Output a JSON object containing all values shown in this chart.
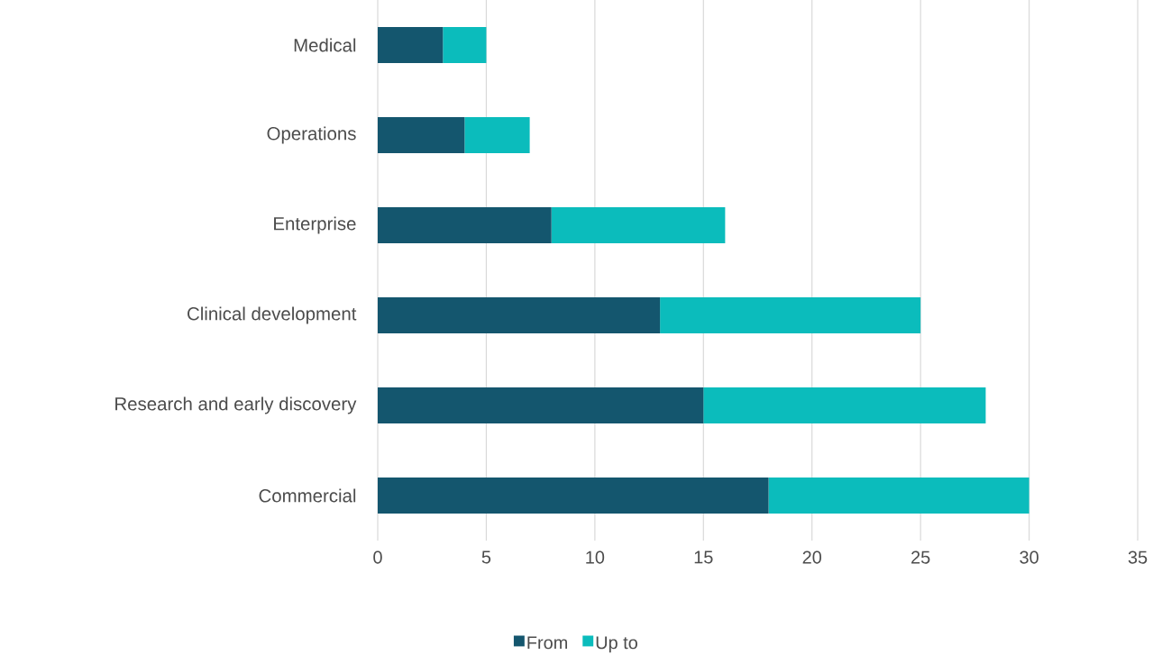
{
  "chart_data": {
    "type": "bar",
    "orientation": "horizontal",
    "stacked": true,
    "categories": [
      "Medical",
      "Operations",
      "Enterprise",
      "Clinical development",
      "Research and early discovery",
      "Commercial"
    ],
    "series": [
      {
        "name": "From",
        "color": "#14566e",
        "values": [
          3,
          4,
          8,
          13,
          15,
          18
        ]
      },
      {
        "name": "Up to",
        "color": "#0bbcbc",
        "values": [
          2,
          3,
          8,
          12,
          13,
          12
        ]
      }
    ],
    "xlim": [
      0,
      35
    ],
    "xticks": [
      0,
      5,
      10,
      15,
      20,
      25,
      30,
      35
    ],
    "grid": "x",
    "legend": "bottom"
  }
}
